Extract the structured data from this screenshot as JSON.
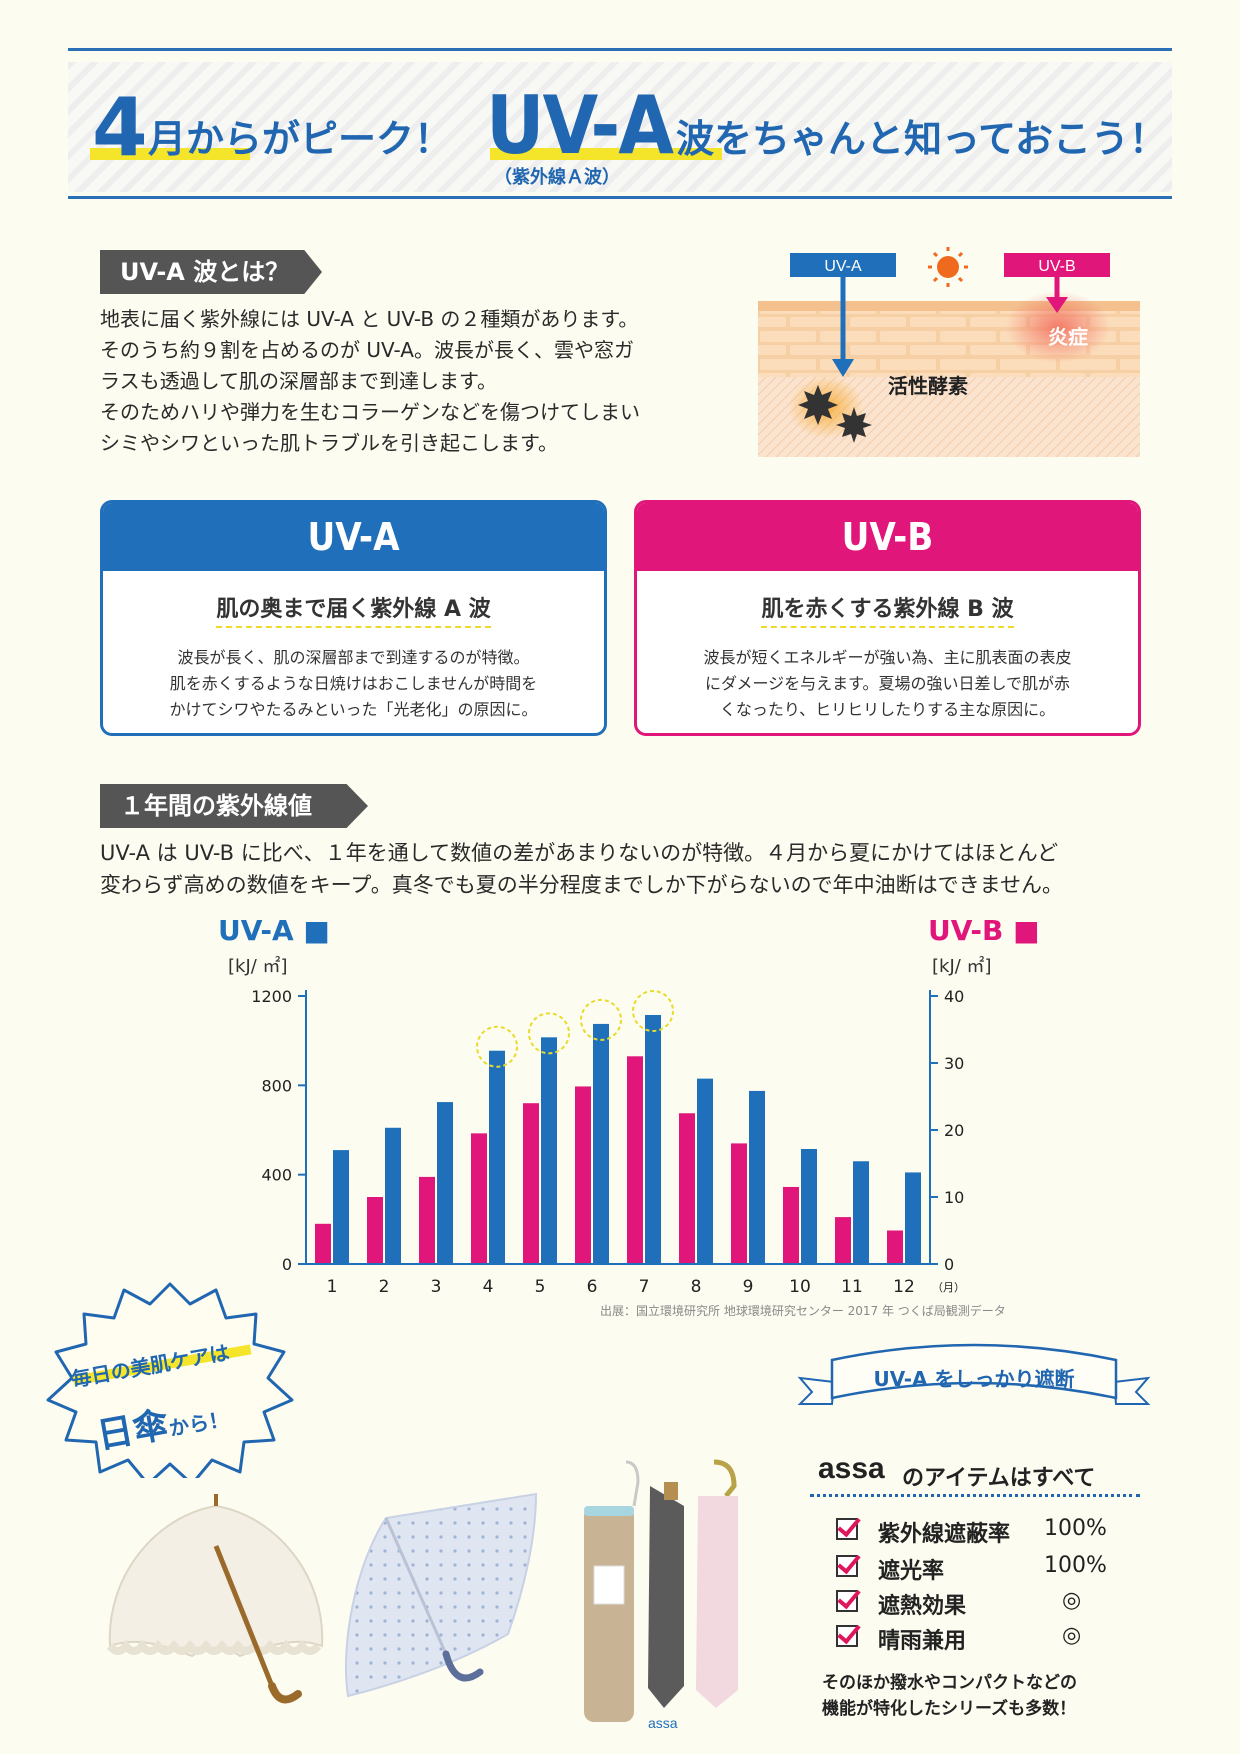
{
  "header": {
    "num": "4",
    "title_1": "月からがピーク！",
    "uva": "UV-A",
    "title_2": "波をちゃんと知っておこう！",
    "sub": "（紫外線Ａ波）"
  },
  "intro": {
    "tag": "UV-A 波とは？",
    "lines": [
      "地表に届く紫外線には UV-A と UV-B の２種類があります。",
      "そのうち約９割を占めるのが UV-A。波長が長く、雲や窓ガ",
      "ラスも透過して肌の深層部まで到達します。",
      "そのためハリや弾力を生むコラーゲンなどを傷つけてしまい",
      "シミやシワといった肌トラブルを引き起こします。"
    ]
  },
  "illustration": {
    "uva_label": "UV-A",
    "uvb_label": "UV-B",
    "inflammation": "炎症",
    "active_oxygen": "活性酵素"
  },
  "cards": {
    "uva": {
      "head": "UV-A",
      "sub": "肌の奥まで届く紫外線 A 波",
      "body": "波長が長く、肌の深層部まで到達するのが特徴。\n肌を赤くするような日焼けはおこしませんが時間を\nかけてシワやたるみといった「光老化」の原因に。"
    },
    "uvb": {
      "head": "UV-B",
      "sub": "肌を赤くする紫外線 B 波",
      "body": "波長が短くエネルギーが強い為、主に肌表面の表皮\nにダメージを与えます。夏場の強い日差しで肌が赤\nくなったり、ヒリヒリしたりする主な原因に。"
    }
  },
  "annual": {
    "tag": "１年間の紫外線値",
    "lines": [
      "UV-A は UV-B に比べ、１年を通して数値の差があまりないのが特徴。４月から夏にかけてはほとんど",
      "変わらず高めの数値をキープ。真冬でも夏の半分程度までしか下がらないので年中油断はできません。"
    ],
    "source": "出展：国立環境研究所 地球環境研究センター 2017 年 つくば局観測データ"
  },
  "chart_data": {
    "type": "bar",
    "categories": [
      "1",
      "2",
      "3",
      "4",
      "5",
      "6",
      "7",
      "8",
      "9",
      "10",
      "11",
      "12"
    ],
    "x_unit": "（月）",
    "series": [
      {
        "name": "UV-B",
        "axis": "right",
        "color": "#e0167a",
        "values": [
          6,
          10,
          13,
          19.5,
          24,
          26.5,
          31,
          22.5,
          18,
          11.5,
          7,
          5
        ]
      },
      {
        "name": "UV-A",
        "axis": "left",
        "color": "#1f6fba",
        "values": [
          510,
          610,
          725,
          955,
          1015,
          1075,
          1115,
          830,
          775,
          515,
          460,
          410
        ]
      }
    ],
    "left_axis": {
      "label": "UV-A",
      "unit": "[kJ/ ㎡]",
      "ticks": [
        "0",
        "400",
        "800",
        "1200"
      ],
      "ylim": [
        0,
        1200
      ]
    },
    "right_axis": {
      "label": "UV-B",
      "unit": "[kJ/ ㎡]",
      "ticks": [
        "0",
        "10",
        "20",
        "30",
        "40"
      ],
      "ylim": [
        0,
        40
      ]
    },
    "highlighted_months": [
      "4",
      "5",
      "6",
      "7"
    ]
  },
  "promo": {
    "burst_1": "毎日の美肌ケアは",
    "burst_2": "日傘",
    "burst_3": "から！",
    "ribbon": "UV-A をしっかり遮断",
    "brand": "assa",
    "items_title": "のアイテムはすべて",
    "features": [
      {
        "name": "紫外線遮蔽率",
        "value": "100%"
      },
      {
        "name": "遮光率",
        "value": "100%"
      },
      {
        "name": "遮熱効果",
        "value": "◎"
      },
      {
        "name": "晴雨兼用",
        "value": "◎"
      }
    ],
    "note_1": "そのほか撥水やコンパクトなどの",
    "note_2": "機能が特化したシリーズも多数！",
    "product_brand": "assa"
  }
}
